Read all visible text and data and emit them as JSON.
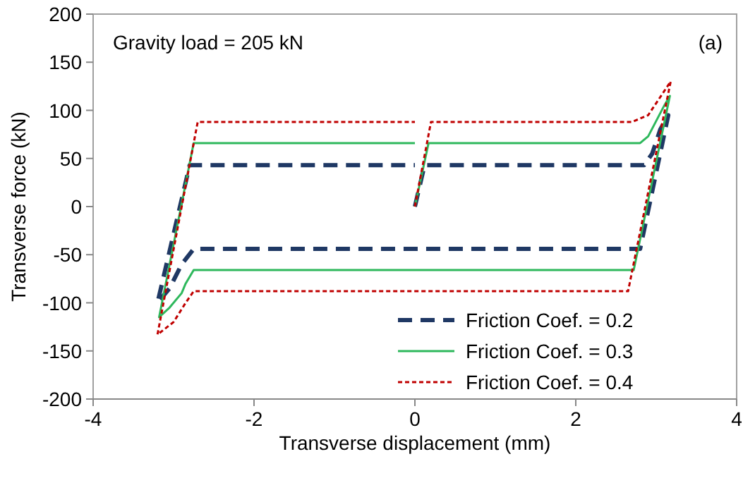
{
  "chart_data": {
    "type": "line",
    "xlabel": "Transverse displacement (mm)",
    "ylabel": "Transverse force (kN)",
    "xlim": [
      -4,
      4
    ],
    "xticks": [
      -4,
      -2,
      0,
      2,
      4
    ],
    "ylim": [
      -200,
      200
    ],
    "yticks": [
      -200,
      -150,
      -100,
      -50,
      0,
      50,
      100,
      150,
      200
    ],
    "grid": false,
    "legend": "bottom right",
    "annotations": [
      "Gravity load = 205 kN",
      "(a)"
    ],
    "series": [
      {
        "name": "Friction Coef. = 0.2",
        "color": "#1f3864",
        "line_style": "dashed",
        "x": [
          0,
          0.12,
          2.85,
          2.95,
          3.05,
          3.15,
          2.8,
          -2.75,
          -2.9,
          -3.05,
          -3.2,
          -2.8,
          0
        ],
        "values": [
          0,
          43,
          43,
          55,
          80,
          95,
          -44,
          -44,
          -60,
          -85,
          -100,
          43,
          43
        ]
      },
      {
        "name": "Friction Coef. = 0.3",
        "color": "#2eb85c",
        "line_style": "solid",
        "x": [
          0,
          0.17,
          2.8,
          2.9,
          3.1,
          3.17,
          2.72,
          -2.75,
          -2.85,
          -2.9,
          -3.05,
          -3.18,
          -2.75,
          0
        ],
        "values": [
          0,
          66,
          66,
          73,
          105,
          115,
          -66,
          -66,
          -80,
          -90,
          -105,
          -115,
          66,
          66
        ]
      },
      {
        "name": "Friction Coef. = 0.4",
        "color": "#c00000",
        "line_style": "dotted",
        "x": [
          0,
          0.2,
          2.7,
          2.9,
          3.1,
          3.18,
          2.65,
          -2.75,
          -2.85,
          -3.0,
          -3.2,
          -2.7,
          0
        ],
        "values": [
          0,
          88,
          88,
          95,
          120,
          130,
          -88,
          -88,
          -100,
          -120,
          -133,
          88,
          88
        ]
      }
    ]
  }
}
